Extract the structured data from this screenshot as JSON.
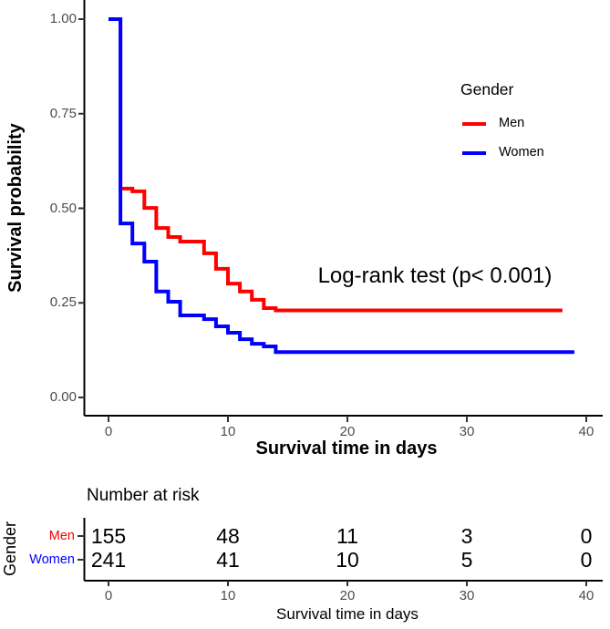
{
  "figure": {
    "background": "#ffffff",
    "axis_color": "#000000",
    "tick_color": "#333333",
    "tick_label_color": "#4d4d4d"
  },
  "chart_data": {
    "type": "line",
    "subtype": "kaplan-meier-step",
    "title": "",
    "xlabel": "Survival time in days",
    "ylabel": "Survival probability",
    "xlim": [
      -2,
      41.5
    ],
    "ylim": [
      0,
      1
    ],
    "x_ticks": [
      0,
      10,
      20,
      30,
      40
    ],
    "y_ticks": [
      0,
      0.25,
      0.5,
      0.75,
      1
    ],
    "y_tick_labels": [
      "0.00",
      "0.25",
      "0.50",
      "0.75",
      "1.00"
    ],
    "grid": false,
    "annotation": "Log-rank test (p< 0.001)",
    "legend": {
      "position": "top-right",
      "title": "Gender",
      "entries": [
        {
          "label": "Men",
          "color": "#ff0000"
        },
        {
          "label": "Women",
          "color": "#0000ff"
        }
      ]
    },
    "series": [
      {
        "name": "Men",
        "color": "#ff0000",
        "points": [
          [
            0,
            1.0
          ],
          [
            1,
            0.552
          ],
          [
            2,
            0.545
          ],
          [
            3,
            0.501
          ],
          [
            4,
            0.448
          ],
          [
            5,
            0.424
          ],
          [
            6,
            0.412
          ],
          [
            8,
            0.381
          ],
          [
            9,
            0.34
          ],
          [
            10,
            0.301
          ],
          [
            11,
            0.28
          ],
          [
            12,
            0.258
          ],
          [
            13,
            0.236
          ],
          [
            14,
            0.23
          ],
          [
            38,
            0.23
          ]
        ]
      },
      {
        "name": "Women",
        "color": "#0000ff",
        "points": [
          [
            0,
            1.0
          ],
          [
            1,
            0.46
          ],
          [
            2,
            0.407
          ],
          [
            3,
            0.359
          ],
          [
            4,
            0.28
          ],
          [
            5,
            0.253
          ],
          [
            6,
            0.217
          ],
          [
            8,
            0.207
          ],
          [
            9,
            0.188
          ],
          [
            10,
            0.171
          ],
          [
            11,
            0.154
          ],
          [
            12,
            0.142
          ],
          [
            13,
            0.135
          ],
          [
            14,
            0.12
          ],
          [
            39,
            0.12
          ]
        ]
      }
    ]
  },
  "risk_table": {
    "title": "Number at risk",
    "ylabel": "Gender",
    "xlabel": "Survival time in days",
    "x_ticks": [
      0,
      10,
      20,
      30,
      40
    ],
    "rows": [
      {
        "label": "Men",
        "color": "#ff0000",
        "values": [
          "155",
          "48",
          "11",
          "3",
          "0"
        ]
      },
      {
        "label": "Women",
        "color": "#0000ff",
        "values": [
          "241",
          "41",
          "10",
          "5",
          "0"
        ]
      }
    ]
  }
}
